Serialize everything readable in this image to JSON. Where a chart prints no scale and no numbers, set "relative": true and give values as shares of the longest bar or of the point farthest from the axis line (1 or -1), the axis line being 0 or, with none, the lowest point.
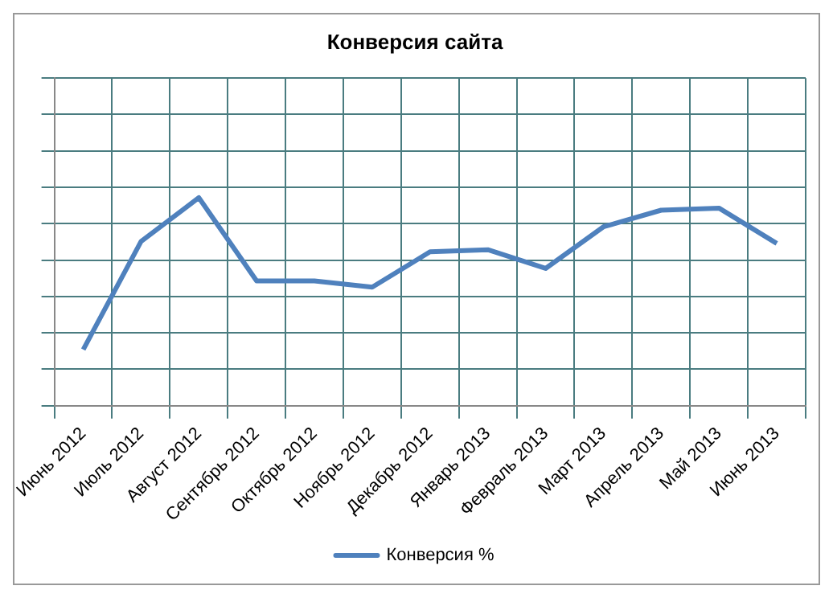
{
  "chart_data": {
    "type": "line",
    "title": "Конверсия сайта",
    "relative": true,
    "categories": [
      "Июнь 2012",
      "Июль 2012",
      "Август 2012",
      "Сентябрь 2012",
      "Октябрь 2012",
      "Ноябрь 2012",
      "Декабрь 2012",
      "Январь 2013",
      "Февраль 2013",
      "Март 2013",
      "Апрель 2013",
      "Май 2013",
      "Июнь 2013"
    ],
    "series": [
      {
        "name": "Конверсия %",
        "color": "#4f81bd",
        "values": [
          0.27,
          0.79,
          1,
          0.6,
          0.6,
          0.57,
          0.74,
          0.75,
          0.66,
          0.86,
          0.94,
          0.95,
          0.78
        ]
      }
    ],
    "grid": true,
    "legend": "bottom",
    "marker": "none",
    "line_style": "solid"
  }
}
